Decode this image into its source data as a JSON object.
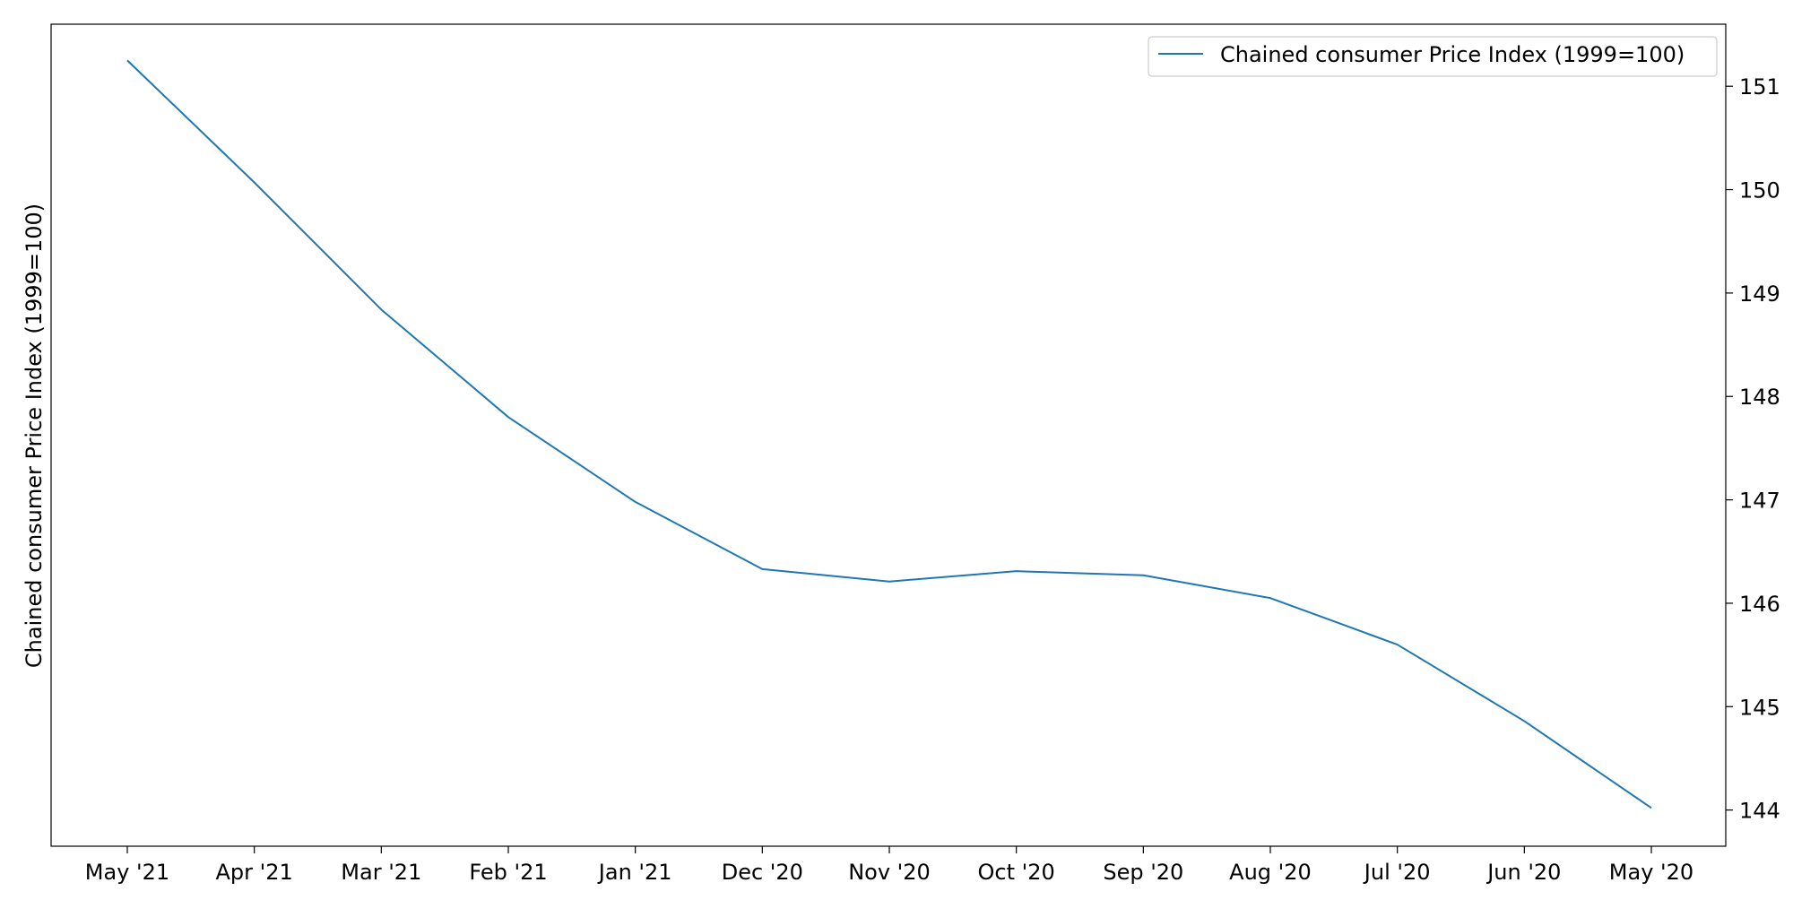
{
  "chart_data": {
    "type": "line",
    "title": "",
    "xlabel": "",
    "ylabel": "Chained consumer Price Index (1999=100)",
    "y_axis_side": "right",
    "categories": [
      "May '21",
      "Apr '21",
      "Mar '21",
      "Feb '21",
      "Jan '21",
      "Dec '20",
      "Nov '20",
      "Oct '20",
      "Sep '20",
      "Aug '20",
      "Jul '20",
      "Jun '20",
      "May '20"
    ],
    "series": [
      {
        "name": "Chained consumer Price Index (1999=100)",
        "color": "#1f77b4",
        "values": [
          151.25,
          150.07,
          148.84,
          147.8,
          146.98,
          146.33,
          146.21,
          146.31,
          146.27,
          146.05,
          145.6,
          144.86,
          144.02
        ]
      }
    ],
    "ylim": [
      143.65,
      151.6
    ],
    "yticks": [
      144,
      145,
      146,
      147,
      148,
      149,
      150,
      151
    ],
    "grid": false,
    "legend_position": "top-right"
  }
}
